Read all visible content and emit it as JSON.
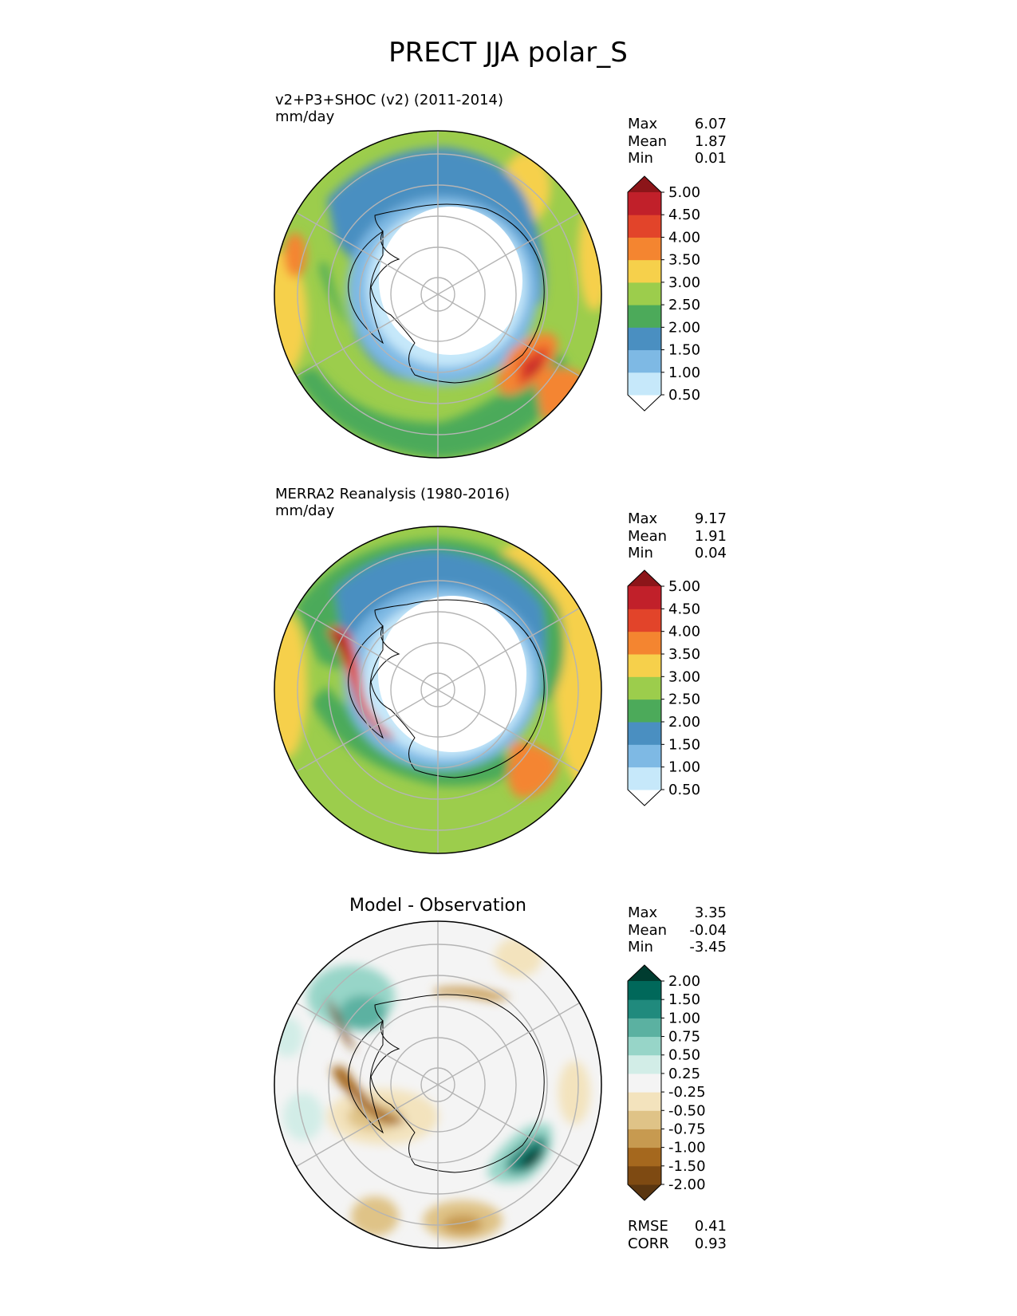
{
  "figure": {
    "title": "PRECT JJA polar_S"
  },
  "chart_data": [
    {
      "type": "heatmap",
      "projection": "south-polar-stereographic",
      "title": "v2+P3+SHOC (v2) (2011-2014)",
      "units": "mm/day",
      "stats": [
        {
          "label": "Max",
          "value": "6.07"
        },
        {
          "label": "Mean",
          "value": "1.87"
        },
        {
          "label": "Min",
          "value": "0.01"
        }
      ],
      "colorbar": {
        "levels": [
          "0.50",
          "1.00",
          "1.50",
          "2.00",
          "2.50",
          "3.00",
          "3.50",
          "4.00",
          "4.50",
          "5.00"
        ],
        "colors": [
          "#ffffff",
          "#c6e8fa",
          "#7eb9e4",
          "#4a8fc1",
          "#4caa5a",
          "#9ccd4c",
          "#f6d04b",
          "#f48530",
          "#e2442a",
          "#c1202a",
          "#8c1519"
        ]
      }
    },
    {
      "type": "heatmap",
      "projection": "south-polar-stereographic",
      "title": "MERRA2 Reanalysis (1980-2016)",
      "units": "mm/day",
      "stats": [
        {
          "label": "Max",
          "value": "9.17"
        },
        {
          "label": "Mean",
          "value": "1.91"
        },
        {
          "label": "Min",
          "value": "0.04"
        }
      ],
      "colorbar": {
        "levels": [
          "0.50",
          "1.00",
          "1.50",
          "2.00",
          "2.50",
          "3.00",
          "3.50",
          "4.00",
          "4.50",
          "5.00"
        ],
        "colors": [
          "#ffffff",
          "#c6e8fa",
          "#7eb9e4",
          "#4a8fc1",
          "#4caa5a",
          "#9ccd4c",
          "#f6d04b",
          "#f48530",
          "#e2442a",
          "#c1202a",
          "#8c1519"
        ]
      }
    },
    {
      "type": "heatmap",
      "projection": "south-polar-stereographic",
      "title": "Model - Observation",
      "units": "",
      "stats": [
        {
          "label": "Max",
          "value": "3.35"
        },
        {
          "label": "Mean",
          "value": "-0.04"
        },
        {
          "label": "Min",
          "value": "-3.45"
        }
      ],
      "extra_stats": [
        {
          "label": "RMSE",
          "value": "0.41"
        },
        {
          "label": "CORR",
          "value": "0.93"
        }
      ],
      "colorbar": {
        "levels": [
          "-2.00",
          "-1.50",
          "-1.00",
          "-0.75",
          "-0.50",
          "-0.25",
          "0.25",
          "0.50",
          "0.75",
          "1.00",
          "1.50",
          "2.00"
        ],
        "colors": [
          "#5a3610",
          "#7e4a12",
          "#a5681e",
          "#c79a50",
          "#dfc387",
          "#f3e3bd",
          "#f4f4f4",
          "#d2ede7",
          "#97d5c8",
          "#5bb1a1",
          "#208a7d",
          "#00685a",
          "#003c30"
        ]
      }
    }
  ]
}
